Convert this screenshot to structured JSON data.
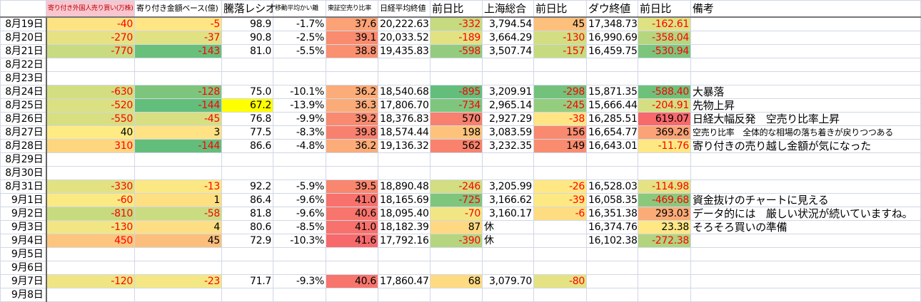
{
  "headers": [
    "",
    "寄り付き外国人売り買い(万株)",
    "寄り付き金額ベース(億)",
    "騰落レシオ",
    "移動平均かい離",
    "東証空売り比率",
    "日経平均終値",
    "前日比",
    "上海総合",
    "前日比",
    "ダウ終値",
    "前日比",
    "備考"
  ],
  "rows": [
    {
      "date": "8月19日",
      "cells": [
        "-40",
        "-5",
        "98.9",
        "-1.7%",
        "37.6",
        "20,222.63",
        "-332",
        "3,794.54",
        "45",
        "17,348.73",
        "-162.61",
        ""
      ],
      "fills": [
        "#fde383",
        "#ffe583",
        "",
        "",
        "#fba276",
        "",
        "#c6db80",
        "",
        "#fdc07c",
        "",
        "#dfe283",
        ""
      ]
    },
    {
      "date": "8月20日",
      "cells": [
        "-270",
        "-37",
        "90.8",
        "-2.5%",
        "39.1",
        "20,033.52",
        "-189",
        "3,664.29",
        "-130",
        "16,990.69",
        "-358.04",
        ""
      ],
      "fills": [
        "#e6e283",
        "#dfe182",
        "",
        "",
        "#f98b6f",
        "",
        "#e2e283",
        "",
        "#d2de81",
        "",
        "#b5d57f",
        ""
      ]
    },
    {
      "date": "8月21日",
      "cells": [
        "-770",
        "-143",
        "81.0",
        "-5.5%",
        "38.8",
        "19,435.83",
        "-598",
        "3,507.74",
        "-157",
        "16,459.75",
        "-530.94",
        ""
      ],
      "fills": [
        "#c8db80",
        "#69c07b",
        "",
        "",
        "#fa9070",
        "",
        "#93cc7e",
        "",
        "#c6db80",
        "",
        "#7cc57c",
        ""
      ]
    },
    {
      "date": "8月22日",
      "cells": [
        "",
        "",
        "",
        "",
        "",
        "",
        "",
        "",
        "",
        "",
        "",
        ""
      ],
      "fills": []
    },
    {
      "date": "8月23日",
      "cells": [
        "",
        "",
        "",
        "",
        "",
        "",
        "",
        "",
        "",
        "",
        "",
        ""
      ],
      "fills": []
    },
    {
      "date": "8月24日",
      "cells": [
        "-630",
        "-128",
        "75.0",
        "-10.1%",
        "36.2",
        "18,540.68",
        "-895",
        "3,209.91",
        "-298",
        "15,871.35",
        "-588.40",
        "大暴落"
      ],
      "fills": [
        "#d3de81",
        "#7dc57c",
        "",
        "",
        "#fbac78",
        "",
        "#63be7b",
        "",
        "#73c27c",
        "",
        "#6ec17b",
        ""
      ]
    },
    {
      "date": "8月25日",
      "cells": [
        "-520",
        "-144",
        "67.2",
        "-13.9%",
        "36.3",
        "17,806.70",
        "-734",
        "2,965.14",
        "-245",
        "15,666.44",
        "-204.91",
        "先物上昇"
      ],
      "fills": [
        "#dbe082",
        "#63be7b",
        "#ffff00",
        "",
        "#fbab78",
        "",
        "#7ec67d",
        "",
        "#94cd7e",
        "",
        "#d5df82",
        ""
      ]
    },
    {
      "date": "8月26日",
      "cells": [
        "-550",
        "-45",
        "76.8",
        "-9.9%",
        "39.2",
        "18,376.83",
        "570",
        "2,927.29",
        "-38",
        "16,285.51",
        "619.07",
        "日経大幅反発　空売り比率上昇"
      ],
      "fills": [
        "#d8df81",
        "#d8df81",
        "",
        "",
        "#f98a6f",
        "",
        "#f8806e",
        "",
        "#ffe583",
        "",
        "#f8696b",
        ""
      ]
    },
    {
      "date": "8月27日",
      "cells": [
        "40",
        "3",
        "77.5",
        "-8.3%",
        "39.8",
        "18,574.44",
        "198",
        "3,083.59",
        "156",
        "16,654.77",
        "369.26",
        "空売り比率　全体的な相場の落ち着きが戻りつつある"
      ],
      "fills": [
        "#ffeb84",
        "#fee283",
        "",
        "",
        "#f8806e",
        "",
        "#fdc37c",
        "",
        "#f98a6f",
        "",
        "#fba276",
        ""
      ],
      "small_note": true
    },
    {
      "date": "8月28日",
      "cells": [
        "310",
        "-144",
        "86.6",
        "-4.8%",
        "36.2",
        "19,136.32",
        "562",
        "3,232.35",
        "149",
        "16,643.01",
        "-11.76",
        "寄り付きの売り越し金額が気になった"
      ],
      "fills": [
        "#fed680",
        "#63be7b",
        "",
        "",
        "#fbac78",
        "",
        "#f8826e",
        "",
        "#f98c6f",
        "",
        "#fee883",
        ""
      ],
      "red_first": true
    },
    {
      "date": "8月29日",
      "cells": [
        "",
        "",
        "",
        "",
        "",
        "",
        "",
        "",
        "",
        "",
        "",
        ""
      ],
      "fills": []
    },
    {
      "date": "8月30日",
      "cells": [
        "",
        "",
        "",
        "",
        "",
        "",
        "",
        "",
        "",
        "",
        "",
        ""
      ],
      "fills": []
    },
    {
      "date": "8月31日",
      "cells": [
        "-330",
        "-13",
        "92.2",
        "-5.9%",
        "39.5",
        "18,890.48",
        "-246",
        "3,205.99",
        "-26",
        "16,528.03",
        "-114.98",
        ""
      ],
      "fills": [
        "#e2e283",
        "#fce883",
        "",
        "",
        "#f9866e",
        "",
        "#d2de81",
        "",
        "#ffe884",
        "",
        "#e5e283",
        ""
      ]
    },
    {
      "date": "9月1日",
      "cells": [
        "-60",
        "1",
        "86.4",
        "-9.6%",
        "41.0",
        "18,165.69",
        "-725",
        "3,166.62",
        "-39",
        "16,058.35",
        "-469.68",
        "資金抜けのチャートに見える"
      ],
      "fills": [
        "#fbe983",
        "#fedf82",
        "",
        "",
        "#f8716c",
        "",
        "#7ec67d",
        "",
        "#fde983",
        "",
        "#8ac97d",
        ""
      ]
    },
    {
      "date": "9月2日",
      "cells": [
        "-810",
        "-58",
        "81.8",
        "-9.6%",
        "40.6",
        "18,095.40",
        "-70",
        "3,160.17",
        "-6",
        "16,351.38",
        "293.03",
        "データ的には　厳しい状況が続いていますね。"
      ],
      "fills": [
        "#c6db80",
        "#cadc81",
        "",
        "",
        "#f8756d",
        "",
        "#f1e683",
        "",
        "#fedd82",
        "",
        "#fbab78",
        ""
      ]
    },
    {
      "date": "9月3日",
      "cells": [
        "-130",
        "4",
        "80.6",
        "-8.5%",
        "41.0",
        "18,182.39",
        "87",
        "休",
        "",
        "16,374.76",
        "23.38",
        "そろそろ買いの準備"
      ],
      "fills": [
        "#f1e683",
        "#fede82",
        "",
        "",
        "#f8716c",
        "",
        "#fed981",
        "",
        "",
        "",
        "#ffe784",
        ""
      ]
    },
    {
      "date": "9月4日",
      "cells": [
        "450",
        "45",
        "72.9",
        "-10.3%",
        "41.6",
        "17,792.16",
        "-390",
        "休",
        "",
        "16,102.38",
        "-272.38",
        ""
      ],
      "fills": [
        "#fdc57d",
        "#fcbf7b",
        "",
        "",
        "#f8696b",
        "",
        "#b5d57f",
        "",
        "",
        "",
        "#b2d47f",
        ""
      ],
      "red_first": true
    },
    {
      "date": "9月5日",
      "cells": [
        "",
        "",
        "",
        "",
        "",
        "",
        "",
        "",
        "",
        "",
        "",
        ""
      ],
      "fills": []
    },
    {
      "date": "9月6日",
      "cells": [
        "",
        "",
        "",
        "",
        "",
        "",
        "",
        "",
        "",
        "",
        "",
        ""
      ],
      "fills": []
    },
    {
      "date": "9月7日",
      "cells": [
        "-120",
        "-23",
        "71.7",
        "-9.3%",
        "40.6",
        "17,860.47",
        "68",
        "3,079.70",
        "-80",
        "",
        "",
        ""
      ],
      "fills": [
        "#f0e583",
        "#f5e783",
        "",
        "",
        "#f8756d",
        "",
        "#fedb81",
        "",
        "#e5e283",
        "",
        "",
        ""
      ]
    },
    {
      "date": "9月8日",
      "cells": [
        "",
        "",
        "",
        "",
        "",
        "",
        "",
        "",
        "",
        "",
        "",
        ""
      ],
      "fills": []
    }
  ],
  "colors": {
    "negative_text": "#ff0000",
    "header_pink": "#f7c6cf",
    "highlight": "#ffff00"
  }
}
